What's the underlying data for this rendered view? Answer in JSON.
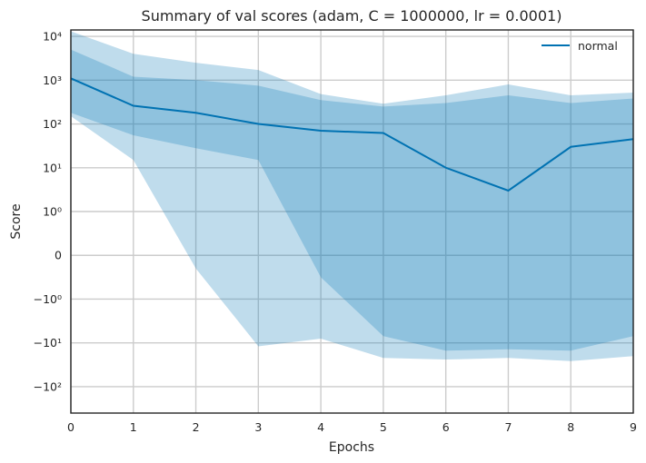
{
  "chart_data": {
    "type": "area",
    "title": "Summary of val scores (adam, C = 1000000, lr = 0.0001)",
    "xlabel": "Epochs",
    "ylabel": "Score",
    "yscale": "symlog",
    "x": [
      0,
      1,
      2,
      3,
      4,
      5,
      6,
      7,
      8,
      9
    ],
    "xlim": [
      0,
      9
    ],
    "ylim": [
      -400,
      14000
    ],
    "x_tick_labels": [
      "0",
      "1",
      "2",
      "3",
      "4",
      "5",
      "6",
      "7",
      "8",
      "9"
    ],
    "y_ticks": [
      {
        "value": 10000,
        "label": "10⁴"
      },
      {
        "value": 1000,
        "label": "10³"
      },
      {
        "value": 100,
        "label": "10²"
      },
      {
        "value": 10,
        "label": "10¹"
      },
      {
        "value": 1,
        "label": "10⁰"
      },
      {
        "value": 0,
        "label": "0"
      },
      {
        "value": -1,
        "label": "−10⁰"
      },
      {
        "value": -10,
        "label": "−10¹"
      },
      {
        "value": -100,
        "label": "−10²"
      }
    ],
    "grid": true,
    "legend_position": "top-right",
    "series": [
      {
        "name": "normal",
        "color": "#0072b2",
        "mean": [
          1100,
          260,
          180,
          100,
          70,
          62,
          10,
          3,
          30,
          45
        ],
        "inner_upper": [
          5000,
          1200,
          1000,
          750,
          350,
          250,
          300,
          450,
          300,
          380
        ],
        "inner_lower": [
          180,
          55,
          28,
          15,
          -0.5,
          -7,
          -15,
          -14,
          -15,
          -7
        ],
        "outer_upper": [
          13000,
          4000,
          2500,
          1700,
          480,
          290,
          450,
          800,
          450,
          520
        ],
        "outer_lower": [
          150,
          15,
          -0.3,
          -12,
          -8,
          -22,
          -24,
          -22,
          -26,
          -20
        ]
      }
    ],
    "band_colors": {
      "inner": "#90bfdd",
      "outer": "#c1dbec"
    }
  }
}
